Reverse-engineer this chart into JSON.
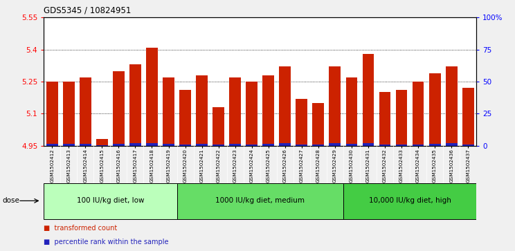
{
  "title": "GDS5345 / 10824951",
  "samples": [
    "GSM1502412",
    "GSM1502413",
    "GSM1502414",
    "GSM1502415",
    "GSM1502416",
    "GSM1502417",
    "GSM1502418",
    "GSM1502419",
    "GSM1502420",
    "GSM1502421",
    "GSM1502422",
    "GSM1502423",
    "GSM1502424",
    "GSM1502425",
    "GSM1502426",
    "GSM1502427",
    "GSM1502428",
    "GSM1502429",
    "GSM1502430",
    "GSM1502431",
    "GSM1502432",
    "GSM1502433",
    "GSM1502434",
    "GSM1502435",
    "GSM1502436",
    "GSM1502437"
  ],
  "red_values": [
    5.25,
    5.25,
    5.27,
    4.98,
    5.3,
    5.33,
    5.41,
    5.27,
    5.21,
    5.28,
    5.13,
    5.27,
    5.25,
    5.28,
    5.32,
    5.17,
    5.15,
    5.32,
    5.27,
    5.38,
    5.2,
    5.21,
    5.25,
    5.29,
    5.32,
    5.22
  ],
  "blue_pct": [
    8,
    8,
    8,
    3,
    10,
    11,
    13,
    8,
    6,
    9,
    4,
    8,
    7,
    9,
    11,
    5,
    4,
    11,
    8,
    14,
    5,
    5,
    7,
    9,
    11,
    6
  ],
  "ymin": 4.95,
  "ymax": 5.55,
  "yticks": [
    4.95,
    5.1,
    5.25,
    5.4,
    5.55
  ],
  "ytick_labels": [
    "4.95",
    "5.1",
    "5.25",
    "5.4",
    "5.55"
  ],
  "right_yticks_pct": [
    0,
    25,
    50,
    75,
    100
  ],
  "right_ytick_labels": [
    "0",
    "25",
    "50",
    "75",
    "100%"
  ],
  "bar_color": "#cc2200",
  "blue_color": "#2222bb",
  "groups": [
    {
      "label": "100 IU/kg diet, low",
      "start": 0,
      "end": 8,
      "color": "#bbffbb"
    },
    {
      "label": "1000 IU/kg diet, medium",
      "start": 8,
      "end": 18,
      "color": "#66dd66"
    },
    {
      "label": "10,000 IU/kg diet, high",
      "start": 18,
      "end": 26,
      "color": "#44cc44"
    }
  ],
  "dose_label": "dose",
  "legend_red": "transformed count",
  "legend_blue": "percentile rank within the sample",
  "fig_bg": "#f0f0f0",
  "plot_bg": "#ffffff",
  "grid_color": "#000000",
  "tick_label_area_bg": "#d8d8d8"
}
